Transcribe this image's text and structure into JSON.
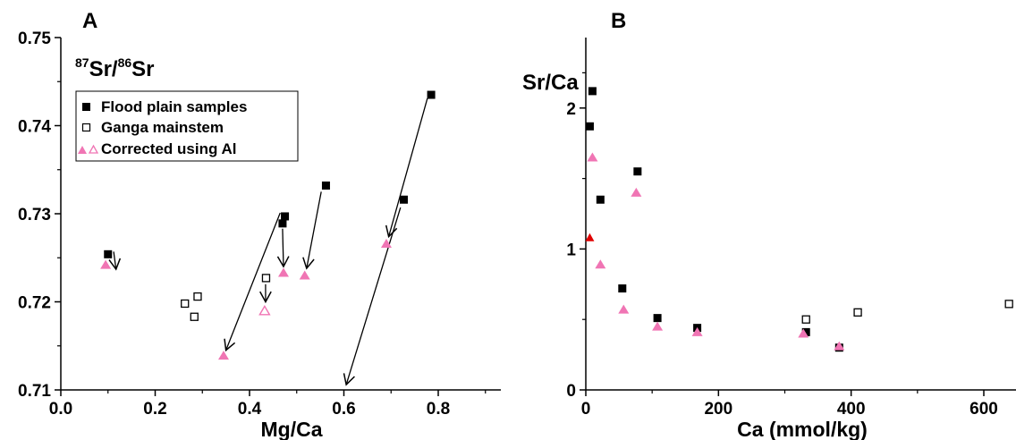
{
  "colors": {
    "filled": "#000000",
    "corrected": "#f075b4",
    "red": "#e00000",
    "axis": "#000000"
  },
  "chart_data": [
    {
      "panel": "A",
      "type": "scatter",
      "xlabel": "Mg/Ca",
      "ylabel": {
        "sup1": "87",
        "main1": "Sr/",
        "sup2": "86",
        "main2": "Sr"
      },
      "xlim": [
        0.0,
        0.9
      ],
      "ylim": [
        0.71,
        0.75
      ],
      "xticks": [
        0.0,
        0.2,
        0.4,
        0.6,
        0.8
      ],
      "xtick_labels": [
        "0.0",
        "0.2",
        "0.4",
        "0.6",
        "0.8"
      ],
      "yticks": [
        0.71,
        0.72,
        0.73,
        0.74,
        0.75
      ],
      "ytick_labels": [
        "0.71",
        "0.72",
        "0.73",
        "0.74",
        "0.75"
      ],
      "legend": {
        "position": "top-left",
        "entries": [
          {
            "marker": "filled-square",
            "label": "Flood plain samples"
          },
          {
            "marker": "open-square",
            "label": "Ganga mainstem"
          },
          {
            "marker": "filled-and-open-triangle",
            "label": "Corrected using Al"
          }
        ]
      },
      "series": [
        {
          "marker": "filled-square",
          "points": [
            [
              0.1,
              0.7254
            ],
            [
              0.47,
              0.7289
            ],
            [
              0.475,
              0.7297
            ],
            [
              0.562,
              0.7332
            ],
            [
              0.727,
              0.7316
            ],
            [
              0.785,
              0.7435
            ]
          ]
        },
        {
          "marker": "open-square",
          "points": [
            [
              0.263,
              0.7198
            ],
            [
              0.283,
              0.7183
            ],
            [
              0.29,
              0.7206
            ],
            [
              0.435,
              0.7227
            ]
          ]
        },
        {
          "marker": "filled-triangle",
          "points": [
            [
              0.095,
              0.7242
            ],
            [
              0.345,
              0.7139
            ],
            [
              0.472,
              0.7233
            ],
            [
              0.517,
              0.723
            ],
            [
              0.69,
              0.7266
            ]
          ]
        },
        {
          "marker": "open-triangle",
          "points": [
            [
              0.432,
              0.719
            ]
          ]
        }
      ],
      "arrows": [
        {
          "from": [
            0.112,
            0.7257
          ],
          "to": [
            0.117,
            0.7237
          ]
        },
        {
          "from": [
            0.47,
            0.7283
          ],
          "to": [
            0.472,
            0.724
          ]
        },
        {
          "from": [
            0.552,
            0.7325
          ],
          "to": [
            0.521,
            0.7238
          ]
        },
        {
          "from": [
            0.434,
            0.722
          ],
          "to": [
            0.434,
            0.72
          ]
        },
        {
          "from": [
            0.465,
            0.7301
          ],
          "to": [
            0.35,
            0.7145
          ]
        },
        {
          "from": [
            0.777,
            0.7431
          ],
          "to": [
            0.695,
            0.7274
          ]
        },
        {
          "from": [
            0.72,
            0.7307
          ],
          "to": [
            0.605,
            0.7106
          ]
        }
      ]
    },
    {
      "panel": "B",
      "type": "scatter",
      "xlabel": "Ca (mmol/kg)",
      "ylabel": "Sr/Ca",
      "xlim": [
        0,
        700
      ],
      "ylim": [
        0,
        2.5
      ],
      "xticks": [
        0,
        200,
        400,
        600
      ],
      "xtick_labels": [
        "0",
        "200",
        "400",
        "600"
      ],
      "yticks": [
        0,
        1,
        2
      ],
      "ytick_labels": [
        "0",
        "1",
        "2"
      ],
      "series": [
        {
          "marker": "filled-square",
          "points": [
            [
              10,
              2.12
            ],
            [
              6,
              1.87
            ],
            [
              78,
              1.55
            ],
            [
              22,
              1.35
            ],
            [
              55,
              0.72
            ],
            [
              108,
              0.51
            ],
            [
              168,
              0.44
            ],
            [
              332,
              0.41
            ],
            [
              382,
              0.3
            ]
          ]
        },
        {
          "marker": "open-square",
          "points": [
            [
              332,
              0.5
            ],
            [
              410,
              0.55
            ],
            [
              638,
              0.61
            ]
          ]
        },
        {
          "marker": "filled-triangle",
          "points": [
            [
              10,
              1.65
            ],
            [
              76,
              1.4
            ],
            [
              22,
              0.89
            ],
            [
              57,
              0.57
            ],
            [
              108,
              0.45
            ],
            [
              168,
              0.41
            ],
            [
              328,
              0.4
            ],
            [
              382,
              0.31
            ]
          ]
        },
        {
          "marker": "red-triangle",
          "points": [
            [
              6,
              1.08
            ]
          ]
        }
      ]
    }
  ]
}
